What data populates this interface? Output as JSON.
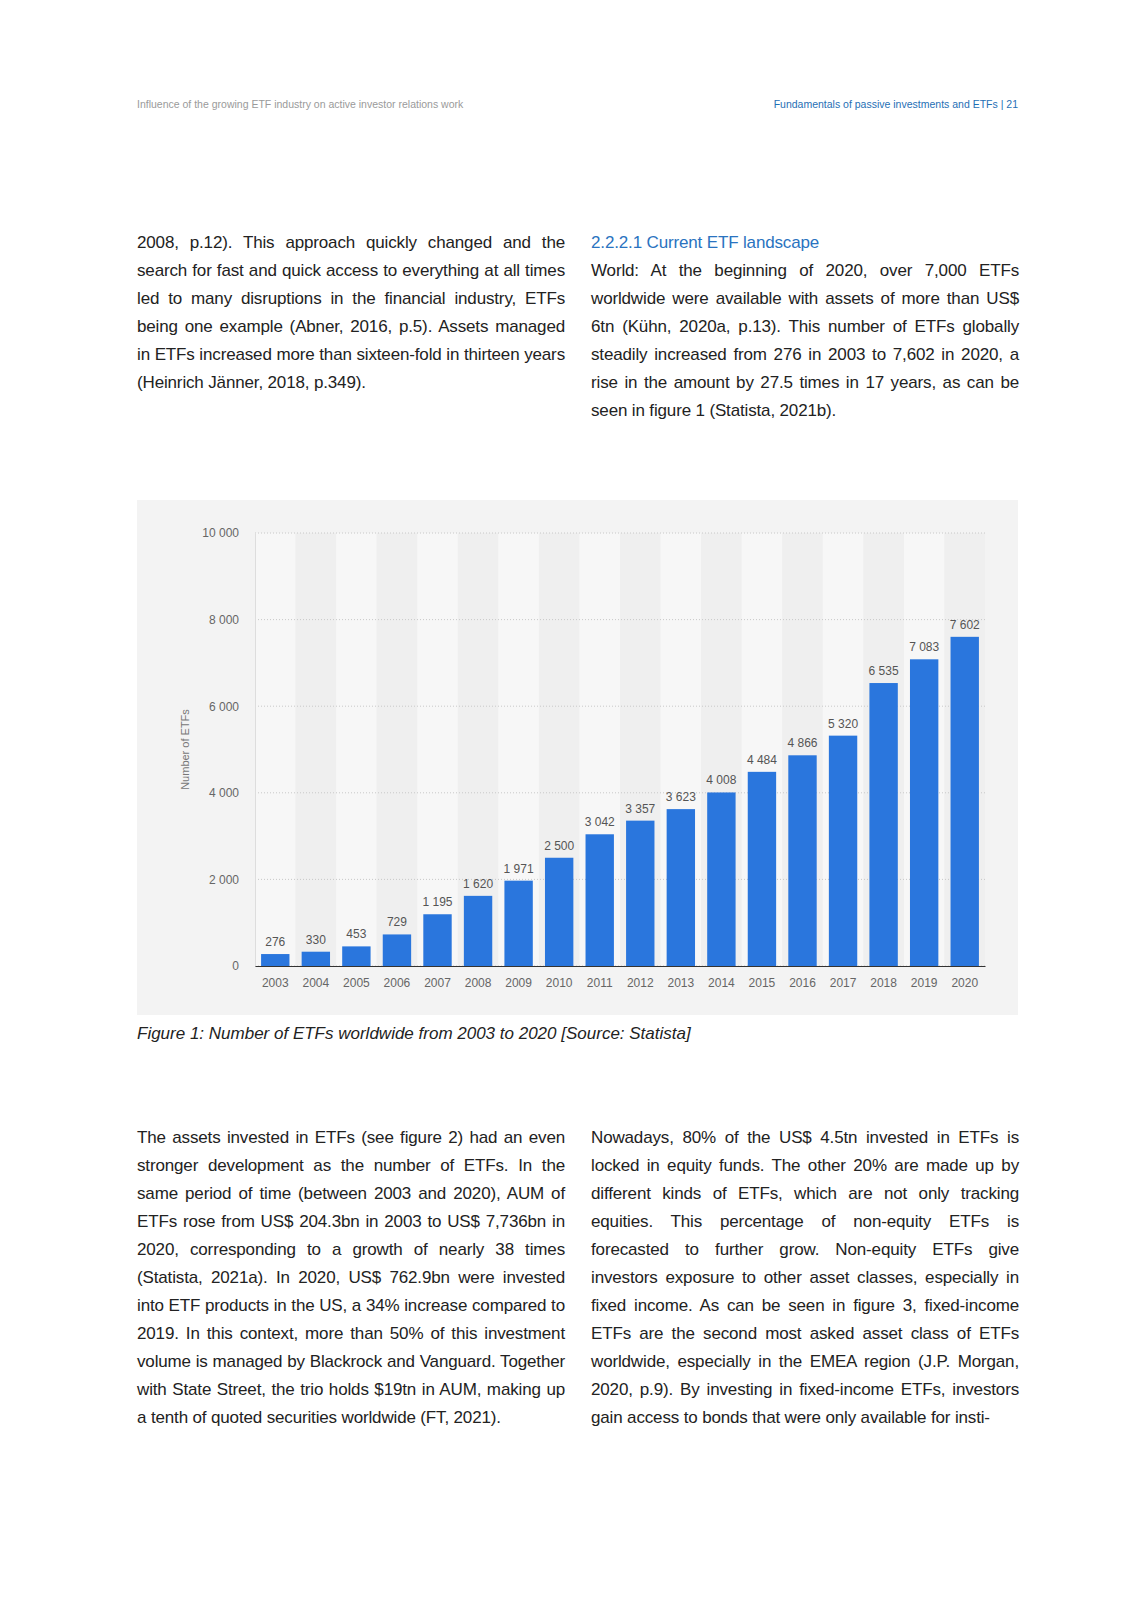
{
  "header": {
    "left": "Influence of the growing ETF industry on active investor relations work",
    "right": "Fundamentals of passive investments and ETFs | 21"
  },
  "top_left": "2008, p.12). This approach quickly changed and the search for fast and quick access to everything at all times led to many disruptions in the financial industry, ETFs being one example (Abner, 2016, p.5). Assets managed in ETFs increased more than sixteen-fold in thirteen years (Heinrich Jänner, 2018, p.349).",
  "section_heading": "2.2.2.1 Current ETF landscape",
  "top_right": "World: At the beginning of 2020, over 7,000 ETFs worldwide were available with assets of more than US$ 6tn (Kühn, 2020a, p.13). This number of ETFs globally steadily increased from 276 in 2003 to 7,602 in 2020, a rise in the amount by 27.5 times in 17 years, as can be seen in figure 1 (Statista, 2021b).",
  "chart_data": {
    "type": "bar",
    "y_label": "Number of ETFs",
    "categories": [
      "2003",
      "2004",
      "2005",
      "2006",
      "2007",
      "2008",
      "2009",
      "2010",
      "2011",
      "2012",
      "2013",
      "2014",
      "2015",
      "2016",
      "2017",
      "2018",
      "2019",
      "2020"
    ],
    "values": [
      276,
      330,
      453,
      729,
      1195,
      1620,
      1971,
      2500,
      3042,
      3357,
      3623,
      4008,
      4484,
      4866,
      5320,
      6535,
      7083,
      7602
    ],
    "value_labels": [
      "276",
      "330",
      "453",
      "729",
      "1 195",
      "1 620",
      "1 971",
      "2 500",
      "3 042",
      "3 357",
      "3 623",
      "4 008",
      "4 484",
      "4 866",
      "5 320",
      "6 535",
      "7 083",
      "7 602"
    ],
    "data_labels": true,
    "color": "#2a76dd",
    "ylim": [
      0,
      10000
    ],
    "yticks": [
      0,
      {
        "value": 2000,
        "label": "2 000"
      },
      {
        "value": 4000,
        "label": "4 000"
      },
      {
        "value": 6000,
        "label": "6 000"
      },
      {
        "value": 8000,
        "label": "8 000"
      },
      {
        "value": 10000,
        "label": "10 000"
      }
    ],
    "grid": true
  },
  "caption": "Figure 1: Number of ETFs worldwide from 2003 to 2020 [Source: Statista]",
  "bottom_left": "The assets invested in ETFs (see figure 2) had an even stronger development as the number of ETFs. In the same period of time (between 2003 and 2020), AUM of ETFs rose from US$ 204.3bn in 2003 to US$ 7,736bn in 2020, corresponding to a growth of nearly 38 times (Statista, 2021a). In 2020, US$ 762.9bn were invested into ETF products in the US, a 34% increase compared to 2019. In this context, more than 50% of this investment volume is managed by Blackrock and Vanguard. Together with State Street, the trio holds $19tn in AUM, making up a tenth of quoted securities worldwide (FT, 2021).",
  "bottom_right": "Nowadays, 80% of the US$ 4.5tn invested in ETFs is locked in equity funds. The other 20% are made up by different kinds of ETFs, which are not only tracking equities. This percentage of non-equity ETFs is forecasted to further grow. Non-equity ETFs give investors exposure to other asset classes, especially in fixed income. As can be seen in figure 3, fixed-income ETFs are the second most asked asset class of ETFs worldwide, especially in the EMEA region (J.P. Morgan, 2020, p.9). By investing in fixed-income ETFs, investors gain access to bonds that were only available for insti-"
}
